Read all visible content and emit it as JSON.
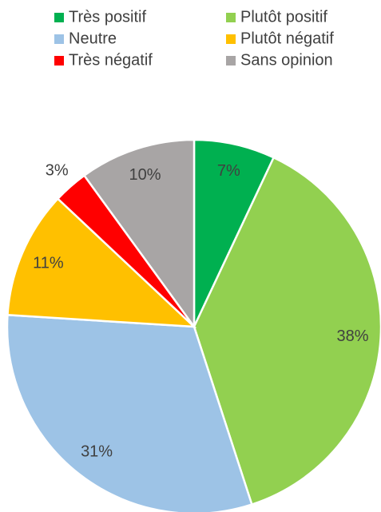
{
  "chart_data": {
    "type": "pie",
    "categories": [
      "Très positif",
      "Plutôt positif",
      "Neutre",
      "Plutôt négatif",
      "Très négatif",
      "Sans opinion"
    ],
    "values": [
      7,
      38,
      31,
      11,
      3,
      10
    ],
    "value_labels": [
      "7%",
      "38%",
      "31%",
      "11%",
      "3%",
      "10%"
    ],
    "colors": [
      "#00b050",
      "#92d050",
      "#9dc3e6",
      "#ffc000",
      "#ff0000",
      "#a8a5a5"
    ]
  }
}
